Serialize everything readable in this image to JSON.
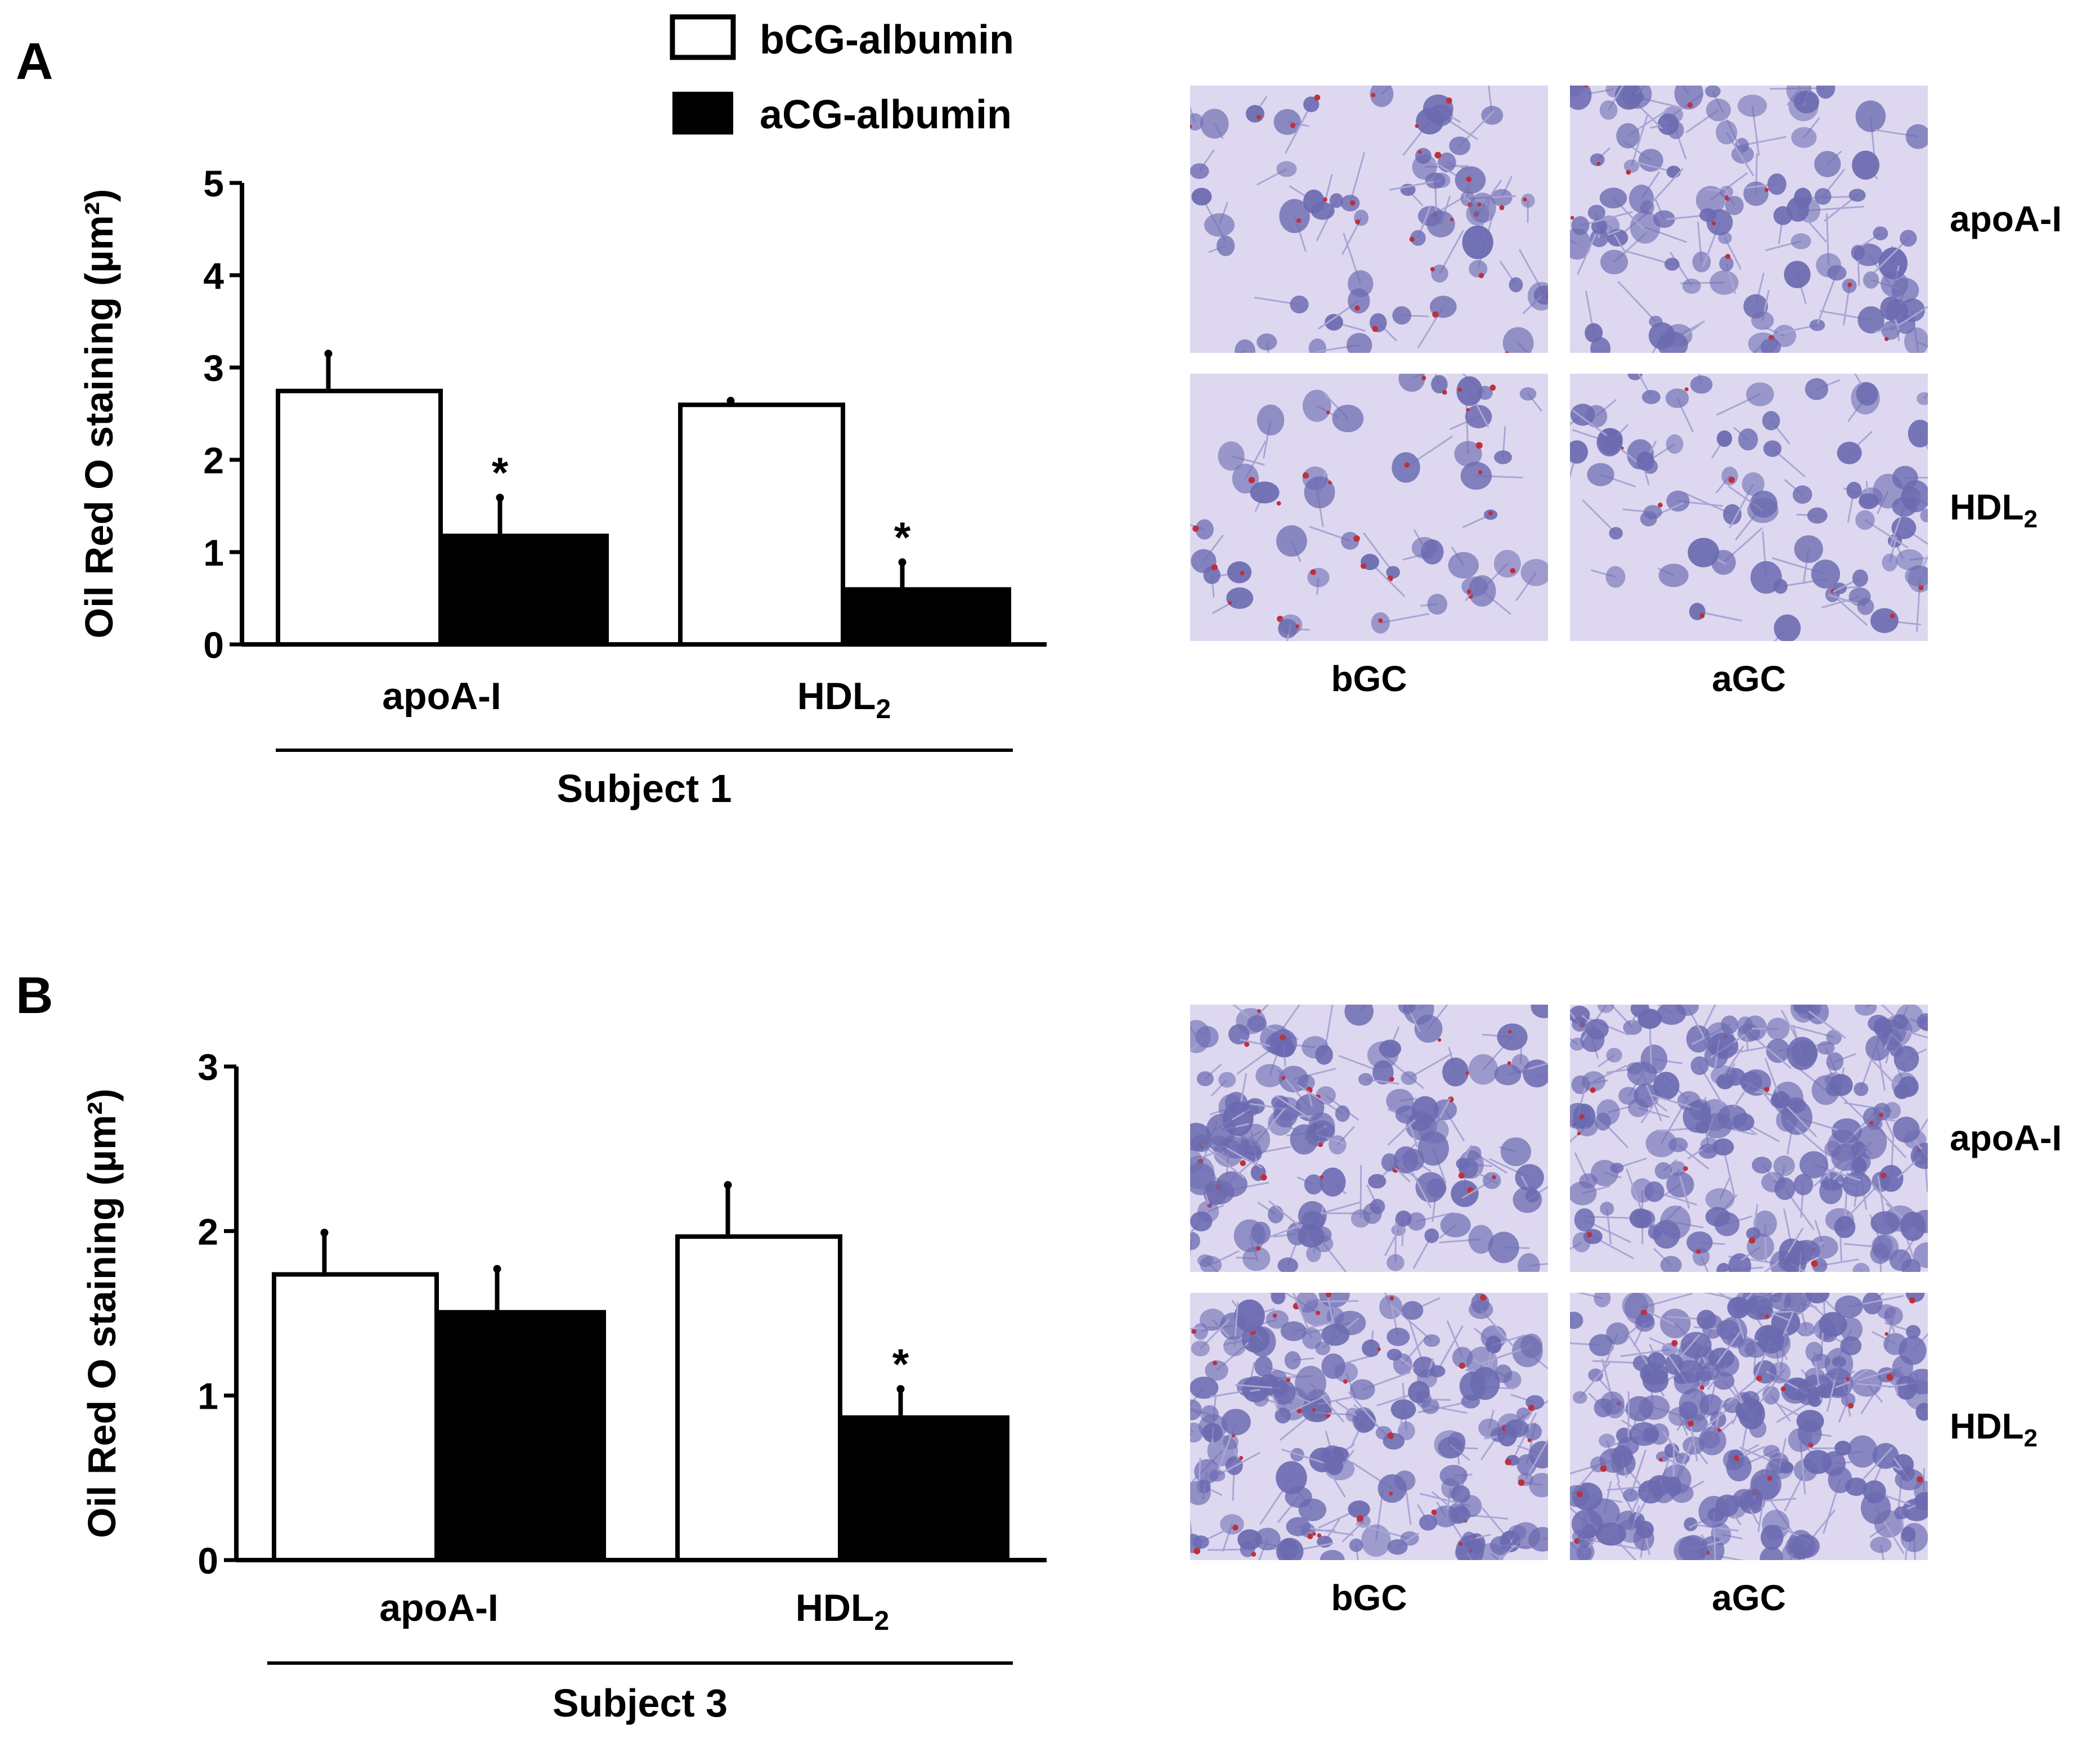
{
  "panels": [
    {
      "letter": "A"
    },
    {
      "letter": "B"
    }
  ],
  "legend": [
    {
      "label": "bCG-albumin",
      "fill": "#ffffff"
    },
    {
      "label": "aCG-albumin",
      "fill": "#000000"
    }
  ],
  "micrographs": {
    "rows": [
      "apoA-I",
      "HDL2"
    ],
    "columns": [
      "bGC",
      "aGC"
    ]
  },
  "chart_data": [
    {
      "type": "bar",
      "panel": "A",
      "ylabel": "Oil Red O staining (µm²)",
      "ylim": [
        0,
        5
      ],
      "yticks": [
        0,
        1,
        2,
        3,
        4,
        5
      ],
      "categories": [
        "apoA-I",
        "HDL2"
      ],
      "group_label": "Subject 1",
      "series": [
        {
          "name": "bCG-albumin",
          "values": [
            2.77,
            2.62
          ],
          "errors": [
            0.38,
            0.02
          ],
          "significant": [
            false,
            false
          ]
        },
        {
          "name": "aCG-albumin",
          "values": [
            1.2,
            0.62
          ],
          "errors": [
            0.39,
            0.27
          ],
          "significant": [
            true,
            true
          ]
        }
      ],
      "significance_marker": "*"
    },
    {
      "type": "bar",
      "panel": "B",
      "ylabel": "Oil Red O staining (µm²)",
      "ylim": [
        0,
        3
      ],
      "yticks": [
        0,
        1,
        2,
        3
      ],
      "categories": [
        "apoA-I",
        "HDL2"
      ],
      "group_label": "Subject 3",
      "series": [
        {
          "name": "bCG-albumin",
          "values": [
            1.75,
            1.98
          ],
          "errors": [
            0.24,
            0.3
          ],
          "significant": [
            false,
            false
          ]
        },
        {
          "name": "aCG-albumin",
          "values": [
            1.52,
            0.88
          ],
          "errors": [
            0.25,
            0.16
          ],
          "significant": [
            false,
            true
          ]
        }
      ],
      "significance_marker": "*"
    }
  ],
  "colors": {
    "micrograph_background": "#ddd8f0",
    "cell_stain": "#6b6ab0",
    "lipid_droplet": "#c0303a"
  }
}
